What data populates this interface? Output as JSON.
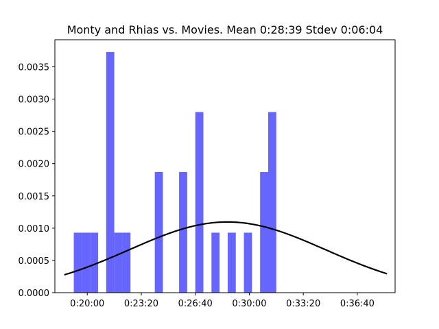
{
  "chart_data": {
    "type": "bar",
    "title": "Monty and Rhias vs. Movies. Mean 0:28:39 Stdev 0:06:04",
    "xlabel": "",
    "ylabel": "",
    "x_unit": "seconds",
    "xlim": [
      1080,
      2340
    ],
    "ylim": [
      0,
      0.00392
    ],
    "bar_color": "#6666ff",
    "curve_color": "#000000",
    "grid": false,
    "x_ticks": [
      {
        "value": 1200,
        "label": "0:20:00"
      },
      {
        "value": 1400,
        "label": "0:23:20"
      },
      {
        "value": 1600,
        "label": "0:26:40"
      },
      {
        "value": 1800,
        "label": "0:30:00"
      },
      {
        "value": 2000,
        "label": "0:33:20"
      },
      {
        "value": 2200,
        "label": "0:36:40"
      }
    ],
    "y_ticks": [
      {
        "value": 0.0,
        "label": "0.0000"
      },
      {
        "value": 0.0005,
        "label": "0.0005"
      },
      {
        "value": 0.001,
        "label": "0.0010"
      },
      {
        "value": 0.0015,
        "label": "0.0015"
      },
      {
        "value": 0.002,
        "label": "0.0020"
      },
      {
        "value": 0.0025,
        "label": "0.0025"
      },
      {
        "value": 0.003,
        "label": "0.0030"
      },
      {
        "value": 0.0035,
        "label": "0.0035"
      }
    ],
    "histogram": {
      "bins": [
        {
          "x0": 1150,
          "x1": 1180,
          "density": 0.00093
        },
        {
          "x0": 1180,
          "x1": 1210,
          "density": 0.00093
        },
        {
          "x0": 1210,
          "x1": 1240,
          "density": 0.00093
        },
        {
          "x0": 1270,
          "x1": 1300,
          "density": 0.00373
        },
        {
          "x0": 1300,
          "x1": 1330,
          "density": 0.00093
        },
        {
          "x0": 1330,
          "x1": 1360,
          "density": 0.00093
        },
        {
          "x0": 1450,
          "x1": 1480,
          "density": 0.00187
        },
        {
          "x0": 1540,
          "x1": 1570,
          "density": 0.00187
        },
        {
          "x0": 1600,
          "x1": 1630,
          "density": 0.0028
        },
        {
          "x0": 1660,
          "x1": 1690,
          "density": 0.00093
        },
        {
          "x0": 1720,
          "x1": 1750,
          "density": 0.00093
        },
        {
          "x0": 1780,
          "x1": 1810,
          "density": 0.00093
        },
        {
          "x0": 1840,
          "x1": 1870,
          "density": 0.00187
        },
        {
          "x0": 1870,
          "x1": 1900,
          "density": 0.0028
        }
      ]
    },
    "normal_curve": {
      "mean": 1719,
      "stdev": 364,
      "x_range": [
        1115,
        2310
      ]
    }
  }
}
